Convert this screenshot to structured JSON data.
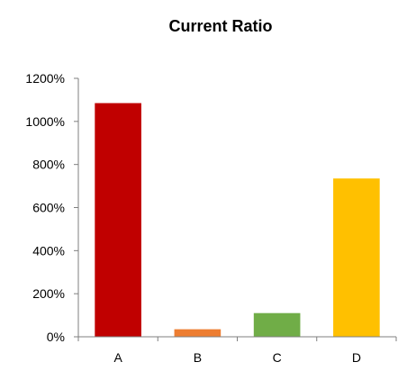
{
  "chart_data": {
    "type": "bar",
    "title": "Current Ratio",
    "categories": [
      "A",
      "B",
      "C",
      "D"
    ],
    "values": [
      1085,
      35,
      110,
      735
    ],
    "colors": [
      "#C00000",
      "#ED7D31",
      "#70AD47",
      "#FFC000"
    ],
    "value_format": "percent",
    "ylim": [
      0,
      1200
    ],
    "y_ticks": [
      0,
      200,
      400,
      600,
      800,
      1000,
      1200
    ],
    "y_tick_labels": [
      "0%",
      "200%",
      "400%",
      "600%",
      "800%",
      "1000%",
      "1200%"
    ],
    "xlabel": "",
    "ylabel": "",
    "grid": false,
    "legend": "none",
    "axis_color": "#7F7F7F"
  }
}
